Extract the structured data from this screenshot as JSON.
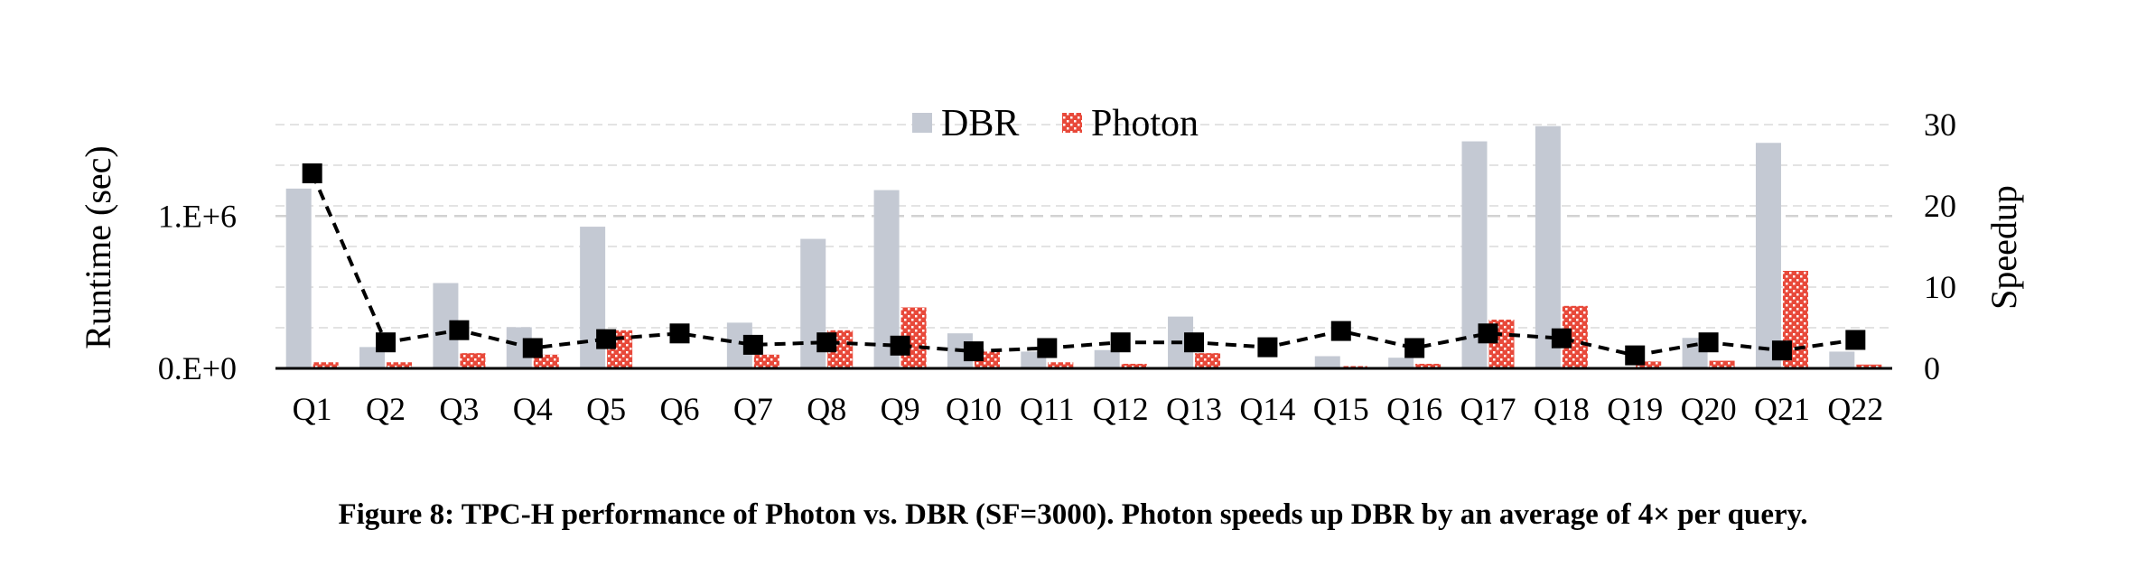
{
  "chart_data": {
    "type": "bar",
    "categories": [
      "Q1",
      "Q2",
      "Q3",
      "Q4",
      "Q5",
      "Q6",
      "Q7",
      "Q8",
      "Q9",
      "Q10",
      "Q11",
      "Q12",
      "Q13",
      "Q14",
      "Q15",
      "Q16",
      "Q17",
      "Q18",
      "Q19",
      "Q20",
      "Q21",
      "Q22"
    ],
    "series": [
      {
        "name": "DBR",
        "color": "#c4c9d3",
        "pattern": "solid",
        "axis": "left",
        "values": [
          1180000,
          140000,
          560000,
          270000,
          930000,
          0,
          300000,
          850000,
          1170000,
          230000,
          110000,
          120000,
          340000,
          0,
          80000,
          70000,
          1490000,
          1590000,
          0,
          200000,
          1480000,
          110000
        ]
      },
      {
        "name": "Photon",
        "color": "#e8493a",
        "pattern": "dotted",
        "axis": "left",
        "values": [
          40000,
          40000,
          100000,
          90000,
          250000,
          0,
          90000,
          250000,
          400000,
          110000,
          40000,
          30000,
          100000,
          0,
          15000,
          30000,
          320000,
          410000,
          45000,
          50000,
          640000,
          25000
        ]
      },
      {
        "type": "line",
        "axis": "right",
        "style": "dashed",
        "marker": "square",
        "color": "#000000",
        "values": [
          24,
          3.2,
          4.7,
          2.5,
          3.6,
          4.3,
          2.9,
          3.2,
          2.8,
          2.1,
          2.5,
          3.2,
          3.2,
          2.6,
          4.6,
          2.5,
          4.3,
          3.7,
          1.6,
          3.2,
          2.2,
          3.5
        ]
      }
    ],
    "ylabel": "Runtime (sec)",
    "yticks": [
      "0.E+0",
      "1.E+6"
    ],
    "ylim": [
      0,
      1600000
    ],
    "y2label": "Speedup",
    "y2ticks": [
      "0",
      "10",
      "20",
      "30"
    ],
    "y2lim": [
      0,
      30
    ],
    "grid": true,
    "legend_position": "top-center",
    "caption": "Figure 8: TPC-H performance of Photon vs. DBR (SF=3000). Photon speeds up DBR by an average of 4× per query."
  }
}
